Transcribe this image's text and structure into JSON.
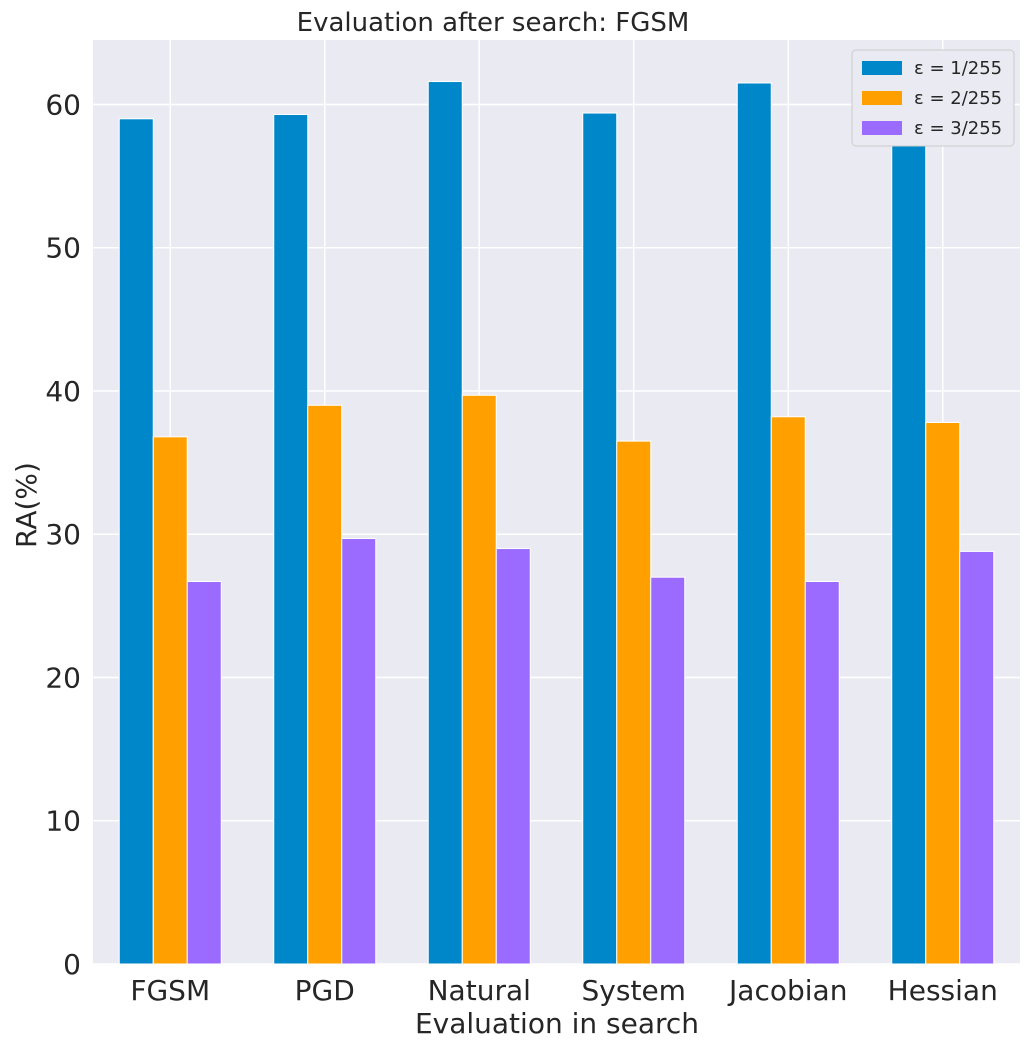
{
  "chart_data": {
    "type": "bar",
    "title": "Evaluation after search: FGSM",
    "xlabel": "Evaluation in search",
    "ylabel": "RA(%)",
    "categories": [
      "FGSM",
      "PGD",
      "Natural",
      "System",
      "Jacobian",
      "Hessian"
    ],
    "series": [
      {
        "name": "ε = 1/255",
        "color": "#0087c9",
        "values": [
          59.0,
          59.3,
          61.6,
          59.4,
          61.5,
          58.2
        ]
      },
      {
        "name": "ε = 2/255",
        "color": "#ffa000",
        "values": [
          36.8,
          39.0,
          39.7,
          36.5,
          38.2,
          37.8
        ]
      },
      {
        "name": "ε = 3/255",
        "color": "#9b6bff",
        "values": [
          26.7,
          29.7,
          29.0,
          27.0,
          26.7,
          28.8
        ]
      }
    ],
    "ylim": [
      0,
      64.5
    ],
    "yticks": [
      0,
      10,
      20,
      30,
      40,
      50,
      60
    ],
    "grid": true,
    "legend_position": "top-right",
    "background": "#eaeaf2",
    "grid_color": "#ffffff"
  }
}
